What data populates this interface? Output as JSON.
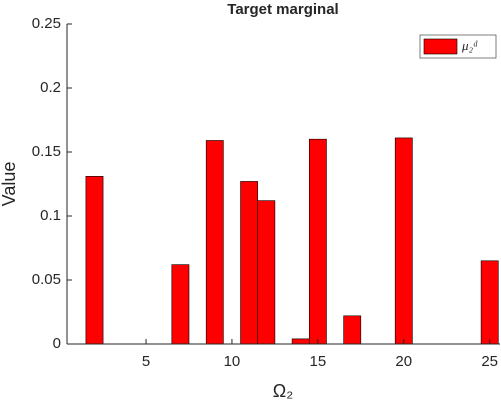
{
  "chart_data": {
    "type": "bar",
    "title": "Target marginal",
    "x_label": "Ω₂",
    "y_label": "Value",
    "x": [
      2,
      7,
      9,
      11,
      12,
      14,
      15,
      17,
      20,
      25
    ],
    "series": [
      {
        "name": "μ₂ᵈ",
        "color": "#ff0000",
        "values": [
          0.131,
          0.062,
          0.159,
          0.127,
          0.112,
          0.004,
          0.16,
          0.022,
          0.161,
          0.065
        ]
      }
    ],
    "xlim": [
      0.4,
      25.6
    ],
    "xticks": [
      5,
      10,
      15,
      20,
      25
    ],
    "ylim": [
      0,
      0.25
    ],
    "yticks": [
      0,
      0.05,
      0.1,
      0.15,
      0.2,
      0.25
    ],
    "bar_width": 1,
    "legend": "upper right"
  }
}
